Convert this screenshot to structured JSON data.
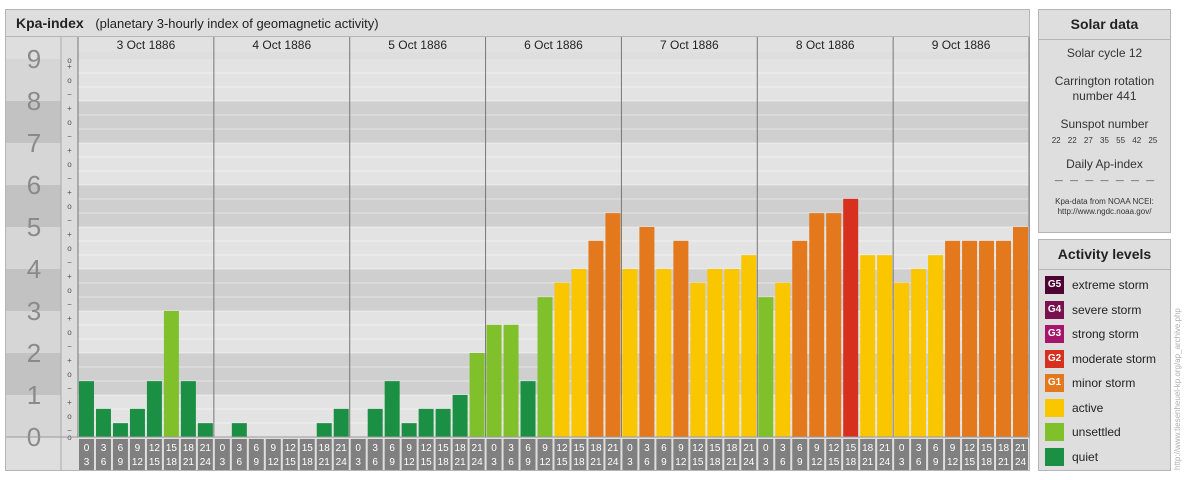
{
  "chart_data": {
    "type": "bar",
    "title": "Kpa-index",
    "subtitle": "(planetary 3-hourly index of geomagnetic activity)",
    "days": [
      "3 Oct 1886",
      "4 Oct 1886",
      "5 Oct 1886",
      "6 Oct 1886",
      "7 Oct 1886",
      "8 Oct 1886",
      "9 Oct 1886"
    ],
    "interval_start_labels": [
      "0",
      "3",
      "6",
      "9",
      "12",
      "15",
      "18",
      "21"
    ],
    "interval_end_labels": [
      "3",
      "6",
      "9",
      "12",
      "15",
      "18",
      "21",
      "24"
    ],
    "y_major_labels": [
      "0",
      "1",
      "2",
      "3",
      "4",
      "5",
      "6",
      "7",
      "8",
      "9"
    ],
    "y_minor_labels": [
      "+",
      "o",
      "−"
    ],
    "y_top_minor_label": "o",
    "ylim": [
      0,
      9
    ],
    "values": [
      [
        1.33,
        0.67,
        0.33,
        0.67,
        1.33,
        3.0,
        1.33,
        0.33
      ],
      [
        0.0,
        0.33,
        0.0,
        0.0,
        0.0,
        0.0,
        0.33,
        0.67
      ],
      [
        0.0,
        0.67,
        1.33,
        0.33,
        0.67,
        0.67,
        1.0,
        2.0
      ],
      [
        2.67,
        2.67,
        1.33,
        3.33,
        3.67,
        4.0,
        4.67,
        5.33
      ],
      [
        4.0,
        5.0,
        4.0,
        4.67,
        3.67,
        4.0,
        4.0,
        4.33
      ],
      [
        3.33,
        3.67,
        4.67,
        5.33,
        5.33,
        5.67,
        4.33,
        4.33
      ],
      [
        3.67,
        4.0,
        4.33,
        4.67,
        4.67,
        4.67,
        4.67,
        5.0
      ]
    ],
    "colors": {
      "quiet": "#1b8f44",
      "unsettled": "#80c02a",
      "active": "#f9c600",
      "minor_storm": "#e4781c",
      "moderate_storm": "#d7301f",
      "strong_storm": "#a6156a",
      "severe_storm": "#7a1050",
      "extreme_storm": "#4d0533"
    }
  },
  "solar_data": {
    "header": "Solar data",
    "cycle": "Solar cycle 12",
    "carrington_line1": "Carrington rotation",
    "carrington_line2": "number 441",
    "sunspot_label": "Sunspot number",
    "sunspot_values": "22 22 27 35 55 42 25",
    "ap_label": "Daily Ap-index",
    "ap_values": "— — — — — — —",
    "source_line1": "Kpa-data from NOAA NCEI:",
    "source_line2": "http://www.ngdc.noaa.gov/"
  },
  "activity_levels": {
    "header": "Activity levels",
    "items": [
      {
        "badge": "G5",
        "label": "extreme storm",
        "color": "#4d0533"
      },
      {
        "badge": "G4",
        "label": "severe storm",
        "color": "#7a1050"
      },
      {
        "badge": "G3",
        "label": "strong storm",
        "color": "#a6156a"
      },
      {
        "badge": "G2",
        "label": "moderate storm",
        "color": "#d7301f"
      },
      {
        "badge": "G1",
        "label": "minor storm",
        "color": "#e4781c"
      },
      {
        "badge": "",
        "label": "active",
        "color": "#f9c600"
      },
      {
        "badge": "",
        "label": "unsettled",
        "color": "#80c02a"
      },
      {
        "badge": "",
        "label": "quiet",
        "color": "#1b8f44"
      }
    ]
  },
  "watermark": "http://www.tiesenheuel-kp.org/ap_archive.php"
}
